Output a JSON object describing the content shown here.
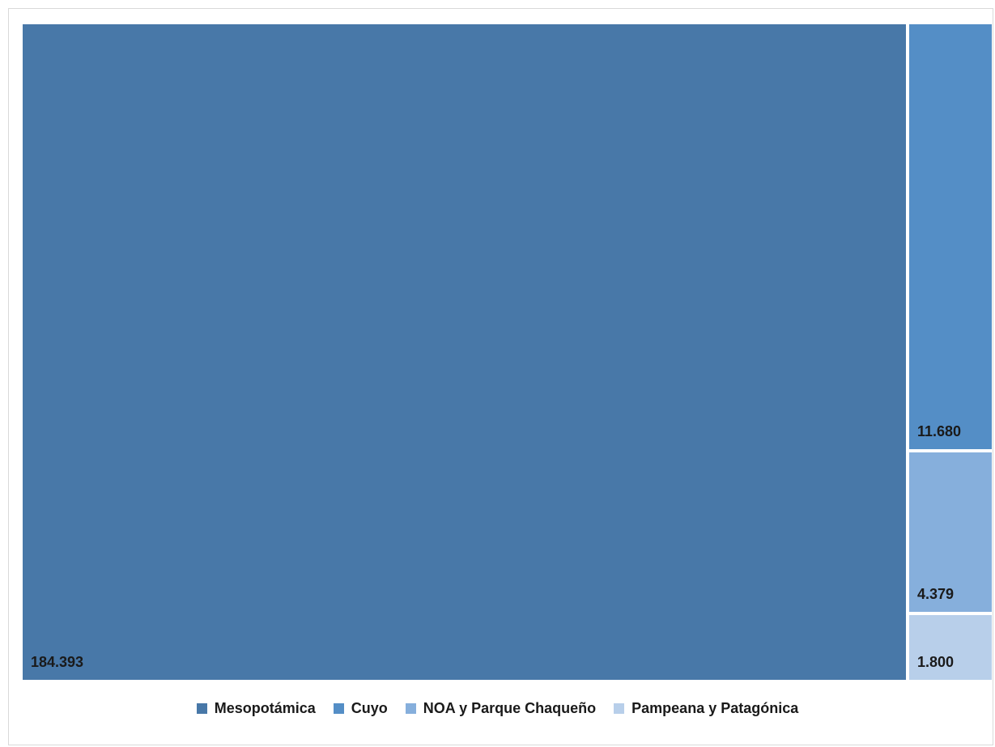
{
  "chart_data": {
    "type": "treemap",
    "title": "",
    "categories": [
      "Mesopotámica",
      "Cuyo",
      "NOA y Parque Chaqueño",
      "Pampeana y Patagónica"
    ],
    "values": [
      184393,
      11680,
      4379,
      1800
    ],
    "value_labels": [
      "184.393",
      "11.680",
      "4.379",
      "1.800"
    ],
    "colors": [
      "#4878a8",
      "#548ec6",
      "#86afdc",
      "#b8cfea"
    ],
    "legend": {
      "placement": "bottom",
      "entries": [
        "Mesopotámica",
        "Cuyo",
        "NOA y Parque Chaqueño",
        "Pampeana y Patagónica"
      ]
    }
  }
}
